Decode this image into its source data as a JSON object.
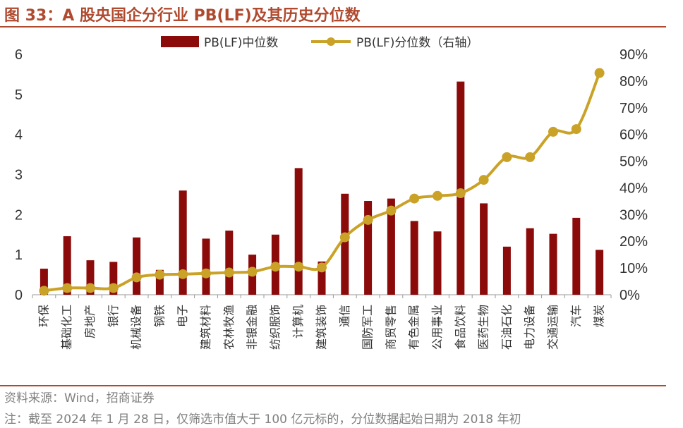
{
  "header": {
    "title": "图 33：A 股央国企分行业 PB(LF)及其历史分位数"
  },
  "footer": {
    "source": "资料来源：Wind，招商证券",
    "note": "注：截至 2024 年 1 月 28 日，仅筛选市值大于 100 亿元标的，分位数据起始日期为 2018 年初"
  },
  "colors": {
    "bar": "#8b0a0a",
    "line": "#c9a227",
    "accent": "#b04a2f"
  },
  "chart_data": {
    "type": "bar",
    "categories": [
      "环保",
      "基础化工",
      "房地产",
      "银行",
      "机械设备",
      "钢铁",
      "电子",
      "建筑材料",
      "农林牧渔",
      "非银金融",
      "纺织服饰",
      "计算机",
      "建筑装饰",
      "通信",
      "国防军工",
      "商贸零售",
      "有色金属",
      "公用事业",
      "食品饮料",
      "医药生物",
      "石油石化",
      "电力设备",
      "交通运输",
      "汽车",
      "煤炭"
    ],
    "series": [
      {
        "name": "PB(LF)中位数",
        "type": "bar",
        "axis": "left",
        "values": [
          0.65,
          1.46,
          0.86,
          0.82,
          1.43,
          0.62,
          2.6,
          1.4,
          1.6,
          1.0,
          1.5,
          3.16,
          0.83,
          2.52,
          2.34,
          2.4,
          1.84,
          1.58,
          5.32,
          2.28,
          1.2,
          1.66,
          1.52,
          1.92,
          1.12
        ]
      },
      {
        "name": "PB(LF)分位数（右轴）",
        "type": "line",
        "axis": "right",
        "values": [
          1.5,
          2.5,
          2.5,
          2.5,
          6.5,
          7.5,
          7.7,
          8.0,
          8.3,
          8.6,
          10.5,
          10.5,
          10.2,
          21.5,
          28.0,
          31.5,
          36.0,
          37.0,
          38.0,
          43.0,
          51.5,
          51.5,
          61.0,
          62.0,
          83.0
        ]
      }
    ],
    "y_left": {
      "min": 0,
      "max": 6,
      "ticks": [
        "0",
        "1",
        "2",
        "3",
        "4",
        "5",
        "6"
      ]
    },
    "y_right": {
      "min": 0,
      "max": 90,
      "ticks": [
        "0%",
        "10%",
        "20%",
        "30%",
        "40%",
        "50%",
        "60%",
        "70%",
        "80%",
        "90%"
      ]
    },
    "legend": {
      "position": "top",
      "items": [
        "PB(LF)中位数",
        "PB(LF)分位数（右轴）"
      ]
    },
    "grid": false
  }
}
